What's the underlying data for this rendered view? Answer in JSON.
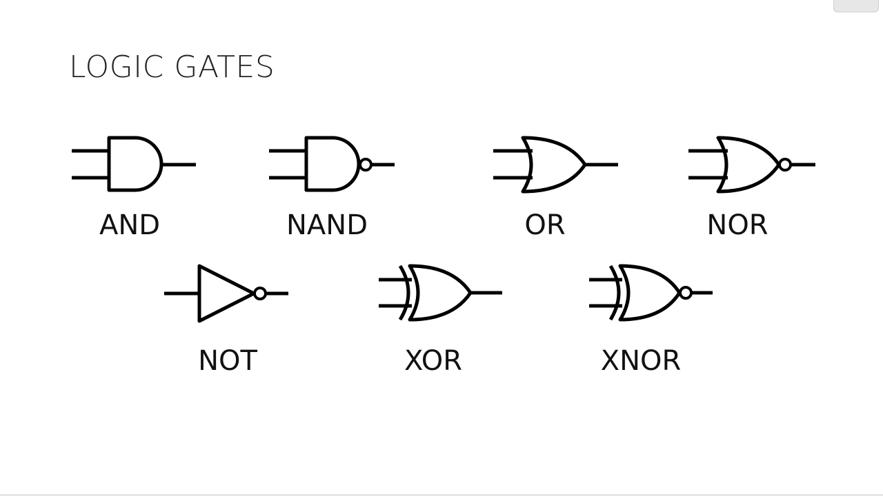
{
  "title": "LOGIC GATES",
  "gates": [
    {
      "type": "and",
      "label": "AND"
    },
    {
      "type": "nand",
      "label": "NAND"
    },
    {
      "type": "or",
      "label": "OR"
    },
    {
      "type": "nor",
      "label": "NOR"
    },
    {
      "type": "not",
      "label": "NOT"
    },
    {
      "type": "xor",
      "label": "XOR"
    },
    {
      "type": "xnor",
      "label": "XNOR"
    }
  ]
}
